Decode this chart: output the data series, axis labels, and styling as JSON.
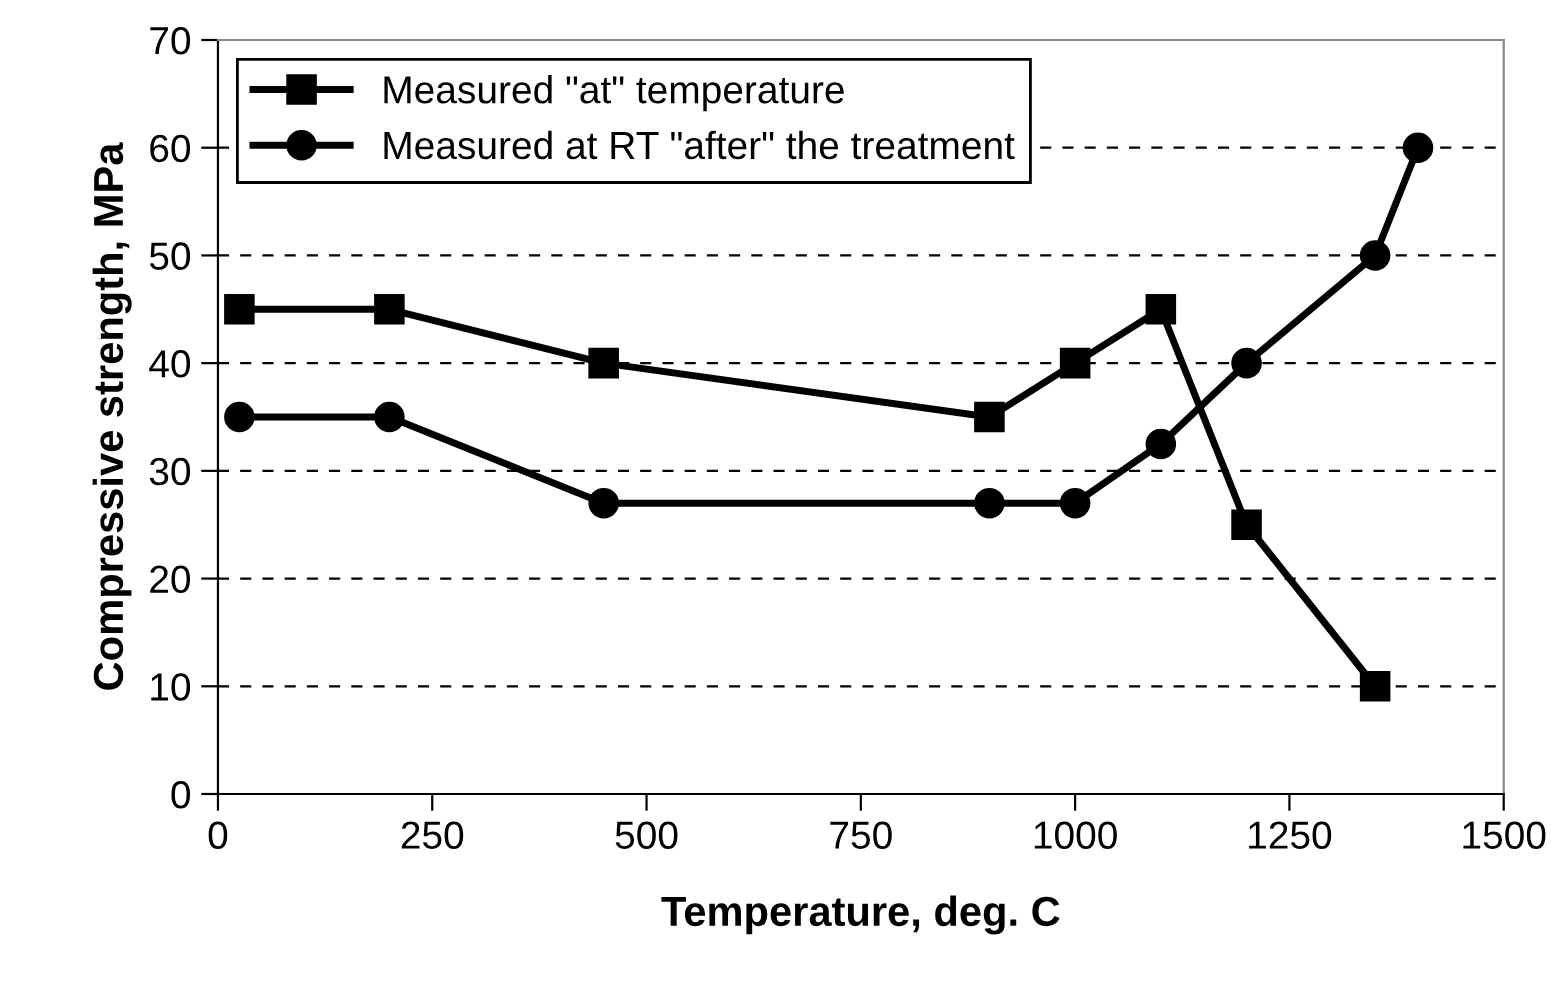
{
  "chart_data": {
    "type": "line",
    "xlabel": "Temperature, deg. C",
    "ylabel": "Compressive strength, MPa",
    "xlim": [
      0,
      1500
    ],
    "xticks": [
      0,
      250,
      500,
      750,
      1000,
      1250,
      1500
    ],
    "ylim": [
      0,
      70
    ],
    "yticks": [
      0,
      10,
      20,
      30,
      40,
      50,
      60,
      70
    ],
    "grid": "y",
    "legend": "top left",
    "series": [
      {
        "name": "Measured \"at\" temperature",
        "color": "#000000",
        "marker": "square",
        "x": [
          25,
          200,
          450,
          900,
          1000,
          1100,
          1200,
          1350
        ],
        "values": [
          45,
          45,
          40,
          35,
          40,
          45,
          25,
          10
        ]
      },
      {
        "name": "Measured at RT \"after\" the treatment",
        "color": "#000000",
        "marker": "circle",
        "x": [
          25,
          200,
          450,
          900,
          1000,
          1100,
          1200,
          1350,
          1400
        ],
        "values": [
          35,
          35,
          27,
          27,
          27,
          32.5,
          40,
          50,
          60
        ]
      }
    ]
  }
}
